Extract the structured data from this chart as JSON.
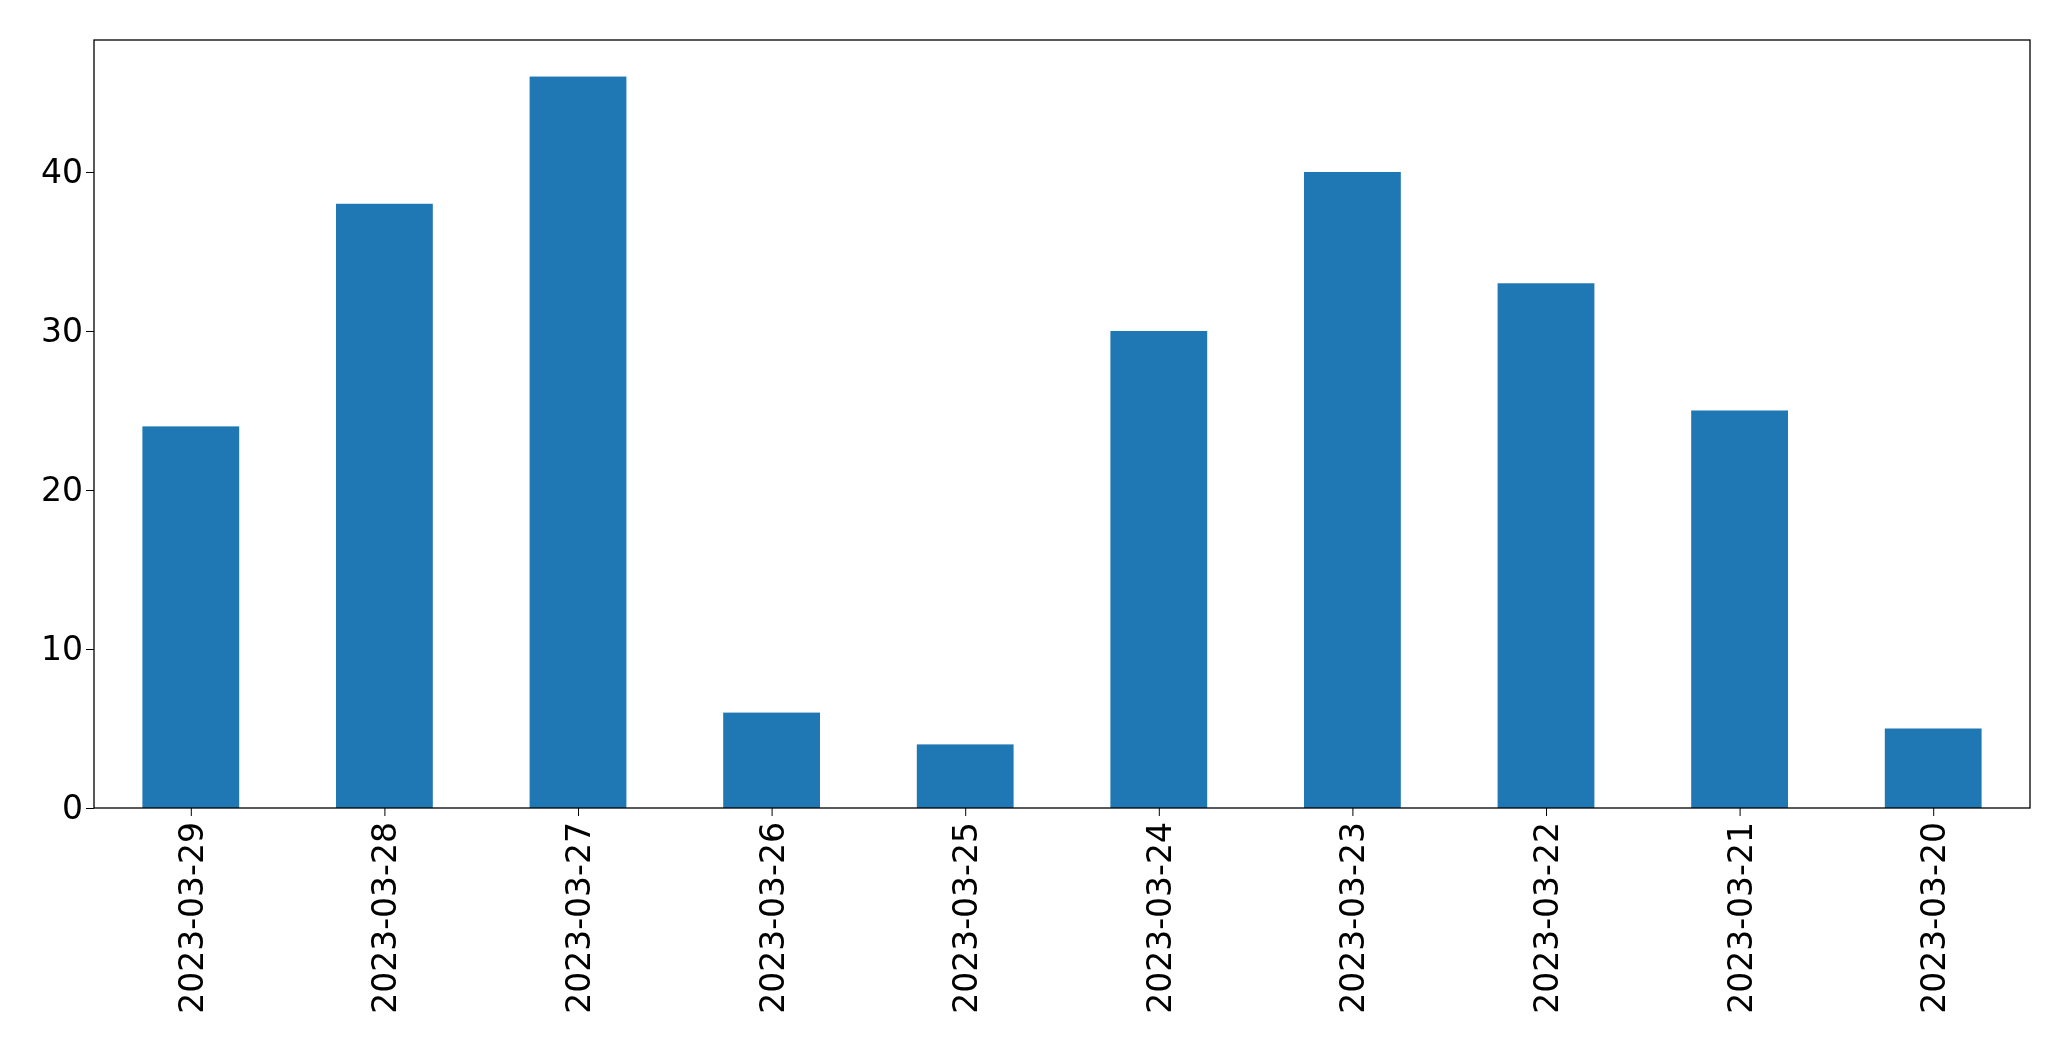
{
  "chart_data": {
    "type": "bar",
    "categories": [
      "2023-03-29",
      "2023-03-28",
      "2023-03-27",
      "2023-03-26",
      "2023-03-25",
      "2023-03-24",
      "2023-03-23",
      "2023-03-22",
      "2023-03-21",
      "2023-03-20"
    ],
    "values": [
      24,
      38,
      46,
      6,
      4,
      30,
      40,
      33,
      25,
      5
    ],
    "color": "#1f77b4",
    "ylim": [
      0,
      48.3
    ],
    "yticks": [
      0,
      10,
      20,
      30,
      40
    ]
  }
}
